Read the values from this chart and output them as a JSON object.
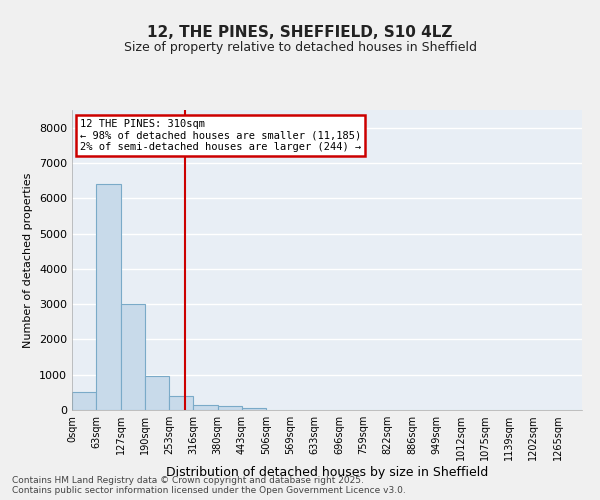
{
  "title_line1": "12, THE PINES, SHEFFIELD, S10 4LZ",
  "title_line2": "Size of property relative to detached houses in Sheffield",
  "xlabel": "Distribution of detached houses by size in Sheffield",
  "ylabel": "Number of detached properties",
  "bar_color": "#c8daea",
  "bar_edge_color": "#7aaac8",
  "background_color": "#e8eef5",
  "fig_background": "#f0f0f0",
  "grid_color": "#ffffff",
  "categories": [
    "0sqm",
    "63sqm",
    "127sqm",
    "190sqm",
    "253sqm",
    "316sqm",
    "380sqm",
    "443sqm",
    "506sqm",
    "569sqm",
    "633sqm",
    "696sqm",
    "759sqm",
    "822sqm",
    "886sqm",
    "949sqm",
    "1012sqm",
    "1075sqm",
    "1139sqm",
    "1202sqm",
    "1265sqm"
  ],
  "values": [
    500,
    6400,
    3000,
    950,
    400,
    150,
    100,
    50,
    5,
    2,
    1,
    0,
    0,
    0,
    0,
    0,
    0,
    0,
    0,
    0,
    0
  ],
  "ylim": [
    0,
    8500
  ],
  "yticks": [
    0,
    1000,
    2000,
    3000,
    4000,
    5000,
    6000,
    7000,
    8000
  ],
  "property_line_x": 4.67,
  "property_line_color": "#cc0000",
  "annotation_title": "12 THE PINES: 310sqm",
  "annotation_line1": "← 98% of detached houses are smaller (11,185)",
  "annotation_line2": "2% of semi-detached houses are larger (244) →",
  "annotation_box_color": "#ffffff",
  "annotation_box_edge_color": "#cc0000",
  "footer_line1": "Contains HM Land Registry data © Crown copyright and database right 2025.",
  "footer_line2": "Contains public sector information licensed under the Open Government Licence v3.0.",
  "figsize": [
    6.0,
    5.0
  ],
  "dpi": 100
}
